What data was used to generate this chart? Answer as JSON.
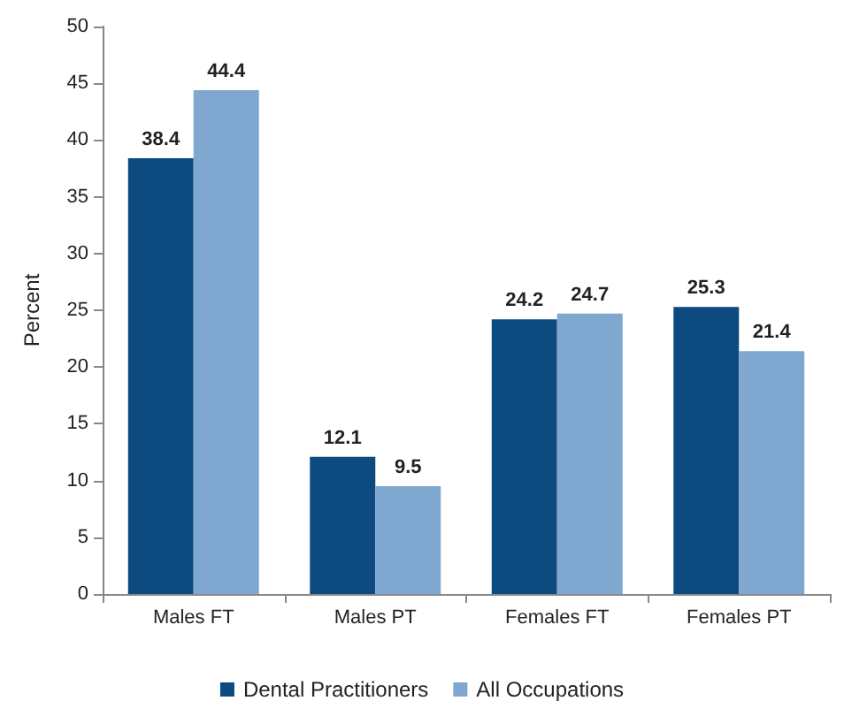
{
  "chart_data": {
    "type": "bar",
    "ylabel": "Percent",
    "categories": [
      "Males FT",
      "Males PT",
      "Females FT",
      "Females PT"
    ],
    "series": [
      {
        "name": "Dental Practitioners",
        "color": "#0d4a80",
        "values": [
          38.4,
          12.1,
          24.2,
          25.3
        ]
      },
      {
        "name": "All Occupations",
        "color": "#7fa7cf",
        "values": [
          44.4,
          9.5,
          24.7,
          21.4
        ]
      }
    ],
    "ylim": [
      0,
      50
    ],
    "yticks": [
      0,
      5,
      10,
      15,
      20,
      25,
      30,
      35,
      40,
      45,
      50
    ],
    "grid": false,
    "legend": "bottom",
    "data_labels": true
  }
}
